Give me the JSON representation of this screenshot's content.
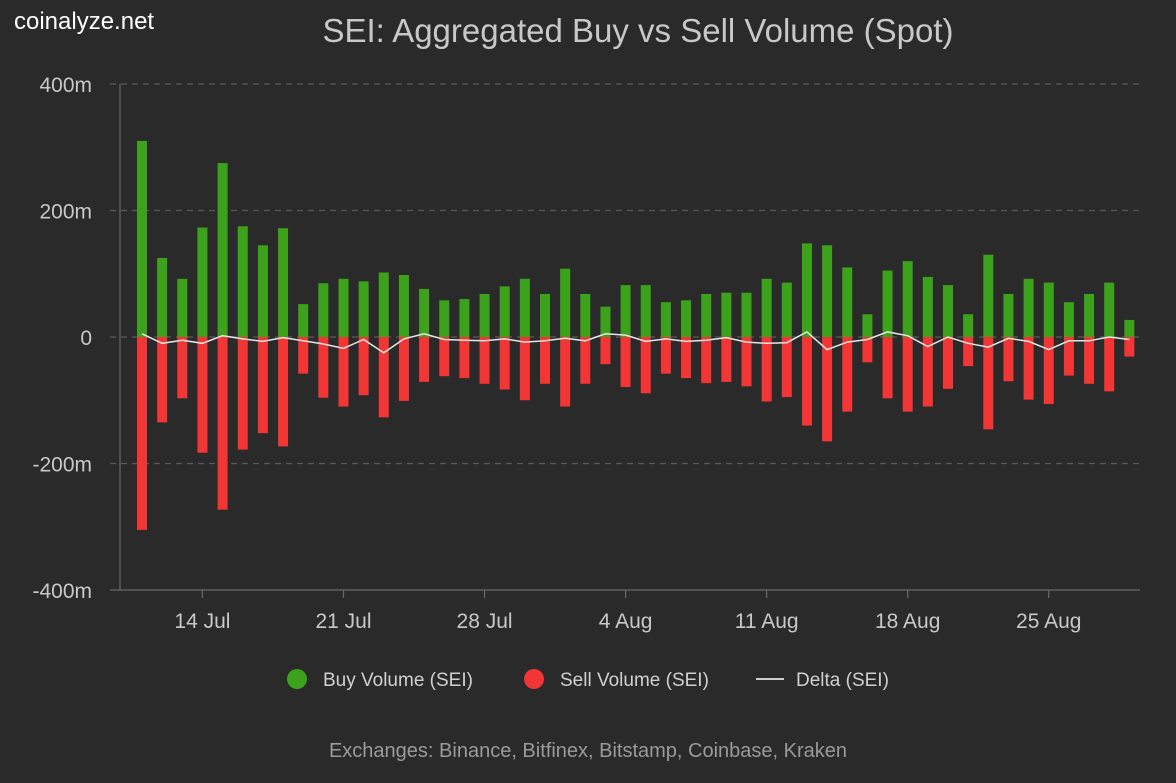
{
  "brand": "coinalyze.net",
  "footer": "Exchanges: Binance, Bitfinex, Bitstamp, Coinbase, Kraken",
  "colors": {
    "background": "#2a2a2a",
    "buy": "#3ca21c",
    "sell": "#f23535",
    "delta": "#e6e6e6",
    "grid": "#5a5a5a",
    "text": "#c8c8c8"
  },
  "chart_data": {
    "type": "bar",
    "title": "SEI: Aggregated Buy vs Sell Volume (Spot)",
    "xlabel": "",
    "ylabel": "",
    "ylim": [
      -400,
      400
    ],
    "y_unit": "m",
    "y_ticks": [
      {
        "value": 400,
        "label": "400m"
      },
      {
        "value": 200,
        "label": "200m"
      },
      {
        "value": 0,
        "label": "0"
      },
      {
        "value": -200,
        "label": "-200m"
      },
      {
        "value": -400,
        "label": "-400m"
      }
    ],
    "x_ticks": [
      {
        "index": 3,
        "label": "14 Jul"
      },
      {
        "index": 10,
        "label": "21 Jul"
      },
      {
        "index": 17,
        "label": "28 Jul"
      },
      {
        "index": 24,
        "label": "4 Aug"
      },
      {
        "index": 31,
        "label": "11 Aug"
      },
      {
        "index": 38,
        "label": "18 Aug"
      },
      {
        "index": 45,
        "label": "25 Aug"
      }
    ],
    "legend_position": "bottom",
    "grid": true,
    "series": [
      {
        "name": "Buy Volume (SEI)",
        "type": "bar",
        "values": [
          310,
          125,
          92,
          173,
          275,
          175,
          145,
          172,
          52,
          85,
          92,
          88,
          102,
          98,
          76,
          58,
          60,
          68,
          80,
          92,
          68,
          108,
          68,
          48,
          82,
          82,
          55,
          58,
          68,
          70,
          70,
          92,
          86,
          148,
          145,
          110,
          36,
          105,
          120,
          95,
          82,
          36,
          130,
          68,
          92,
          86,
          55,
          68,
          86,
          27
        ]
      },
      {
        "name": "Sell Volume (SEI)",
        "type": "bar",
        "values": [
          -305,
          -135,
          -97,
          -183,
          -273,
          -178,
          -152,
          -173,
          -58,
          -96,
          -110,
          -92,
          -127,
          -101,
          -71,
          -62,
          -65,
          -74,
          -83,
          -100,
          -74,
          -110,
          -74,
          -43,
          -79,
          -89,
          -58,
          -65,
          -73,
          -71,
          -78,
          -102,
          -95,
          -140,
          -165,
          -118,
          -40,
          -97,
          -118,
          -110,
          -82,
          -46,
          -146,
          -70,
          -99,
          -106,
          -61,
          -74,
          -86,
          -31
        ]
      },
      {
        "name": "Delta (SEI)",
        "type": "line",
        "values": [
          5,
          -10,
          -5,
          -10,
          2,
          -3,
          -7,
          -1,
          -6,
          -11,
          -18,
          -4,
          -25,
          -3,
          5,
          -4,
          -5,
          -6,
          -3,
          -8,
          -6,
          -2,
          -6,
          5,
          3,
          -7,
          -3,
          -7,
          -5,
          -1,
          -8,
          -10,
          -9,
          8,
          -20,
          -8,
          -4,
          8,
          2,
          -15,
          0,
          -10,
          -16,
          -2,
          -7,
          -20,
          -6,
          -6,
          0,
          -4
        ]
      }
    ]
  }
}
